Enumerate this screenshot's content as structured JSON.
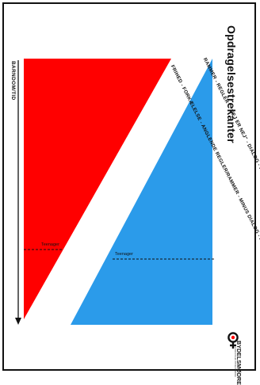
{
  "title": "Opdragelsestrekanter",
  "blue_caption": "RAMMER - REGLER - \"NEJ ER NEJ\" - DIALOG - FORKLARING - TILLID - FRIHED",
  "red_caption": "FRIHED - FORKÆLELSE - ANGLENDE REGLER/RAMMER - MINUS DIALOG - REGLER",
  "axis_label": "BARNDOM/TID",
  "teen_label_blue": "Teenager",
  "teen_label_red": "Teenager",
  "logo": {
    "text": "BYDELSMØDRE",
    "subtext": "FORENINGEN BYDELSMØDRE",
    "icon": "venus-symbol-icon"
  },
  "colors": {
    "blue": "#2b9bea",
    "red": "#ff0000",
    "ink": "#111111"
  }
}
